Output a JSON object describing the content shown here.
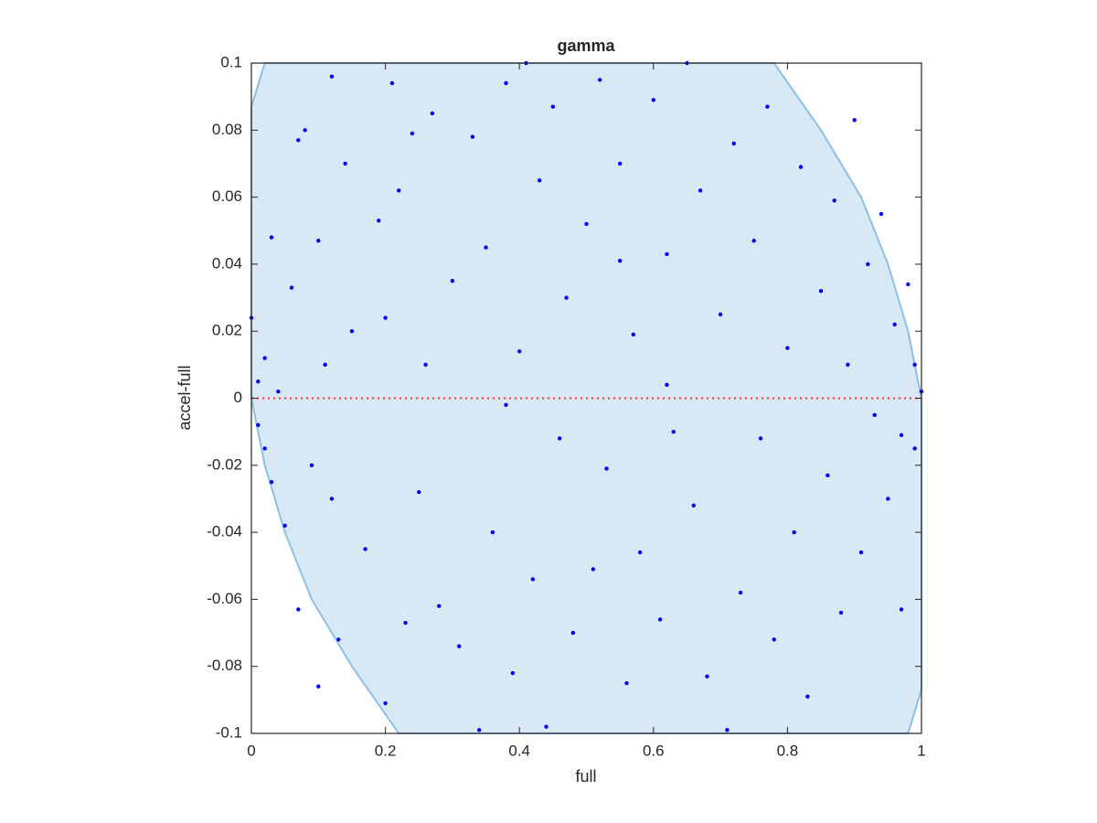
{
  "chart_data": {
    "type": "scatter",
    "title": "gamma",
    "x_label": "full",
    "y_label": "accel-full",
    "xlim": [
      0,
      1
    ],
    "ylim": [
      -0.1,
      0.1
    ],
    "xticks": [
      0,
      0.2,
      0.4,
      0.6,
      0.8,
      1
    ],
    "yticks": [
      -0.1,
      -0.08,
      -0.06,
      -0.04,
      -0.02,
      0,
      0.02,
      0.04,
      0.06,
      0.08,
      0.1
    ],
    "region": {
      "color": "#d8e8f4",
      "edge_color": "#8ec0e4",
      "x": [
        0,
        0.02,
        0.78,
        0.85,
        0.91,
        0.95,
        0.98,
        1,
        1,
        0.98,
        0.22,
        0.15,
        0.09,
        0.05,
        0.02,
        0
      ],
      "y": [
        0.087,
        0.1,
        0.1,
        0.08,
        0.06,
        0.04,
        0.02,
        0,
        -0.087,
        -0.1,
        -0.1,
        -0.08,
        -0.06,
        -0.04,
        -0.02,
        0
      ]
    },
    "reference_line": {
      "color": "#ff3030",
      "x": [
        0,
        1
      ],
      "y": [
        0,
        0
      ]
    },
    "series": [
      {
        "color": "#0000ee",
        "x": [
          0.0,
          0.01,
          0.01,
          0.02,
          0.02,
          0.03,
          0.03,
          0.04,
          0.05,
          0.06,
          0.07,
          0.07,
          0.08,
          0.09,
          0.1,
          0.1,
          0.11,
          0.12,
          0.12,
          0.13,
          0.14,
          0.15,
          0.17,
          0.19,
          0.2,
          0.21,
          0.22,
          0.23,
          0.24,
          0.25,
          0.26,
          0.27,
          0.28,
          0.3,
          0.31,
          0.33,
          0.34,
          0.35,
          0.36,
          0.38,
          0.39,
          0.4,
          0.41,
          0.42,
          0.43,
          0.44,
          0.45,
          0.46,
          0.47,
          0.48,
          0.5,
          0.51,
          0.52,
          0.53,
          0.55,
          0.56,
          0.57,
          0.58,
          0.6,
          0.61,
          0.62,
          0.63,
          0.65,
          0.66,
          0.67,
          0.68,
          0.7,
          0.71,
          0.72,
          0.73,
          0.75,
          0.76,
          0.77,
          0.78,
          0.8,
          0.81,
          0.82,
          0.83,
          0.85,
          0.86,
          0.87,
          0.88,
          0.89,
          0.9,
          0.91,
          0.92,
          0.93,
          0.94,
          0.95,
          0.96,
          0.97,
          0.98,
          0.99,
          1.0,
          0.97,
          0.99,
          0.62,
          0.38,
          0.2,
          0.55
        ],
        "values": [
          0.024,
          0.005,
          -0.008,
          0.012,
          -0.015,
          0.048,
          -0.025,
          0.002,
          -0.038,
          0.033,
          0.077,
          -0.063,
          0.08,
          -0.02,
          0.047,
          -0.086,
          0.01,
          0.096,
          -0.03,
          -0.072,
          0.07,
          0.02,
          -0.045,
          0.053,
          -0.091,
          0.094,
          0.062,
          -0.067,
          0.079,
          -0.028,
          0.01,
          0.085,
          -0.062,
          0.035,
          -0.074,
          0.078,
          -0.099,
          0.045,
          -0.04,
          0.094,
          -0.082,
          0.014,
          0.1,
          -0.054,
          0.065,
          -0.098,
          0.087,
          -0.012,
          0.03,
          -0.07,
          0.052,
          -0.051,
          0.095,
          -0.021,
          0.07,
          -0.085,
          0.019,
          -0.046,
          0.089,
          -0.066,
          0.043,
          -0.01,
          0.1,
          -0.032,
          0.062,
          -0.083,
          0.025,
          -0.099,
          0.076,
          -0.058,
          0.047,
          -0.012,
          0.087,
          -0.072,
          0.015,
          -0.04,
          0.069,
          -0.089,
          0.032,
          -0.023,
          0.059,
          -0.064,
          0.01,
          0.083,
          -0.046,
          0.04,
          -0.005,
          0.055,
          -0.03,
          0.022,
          -0.011,
          0.034,
          -0.015,
          0.002,
          -0.063,
          0.01,
          0.004,
          -0.002,
          0.024,
          0.041
        ]
      }
    ]
  }
}
